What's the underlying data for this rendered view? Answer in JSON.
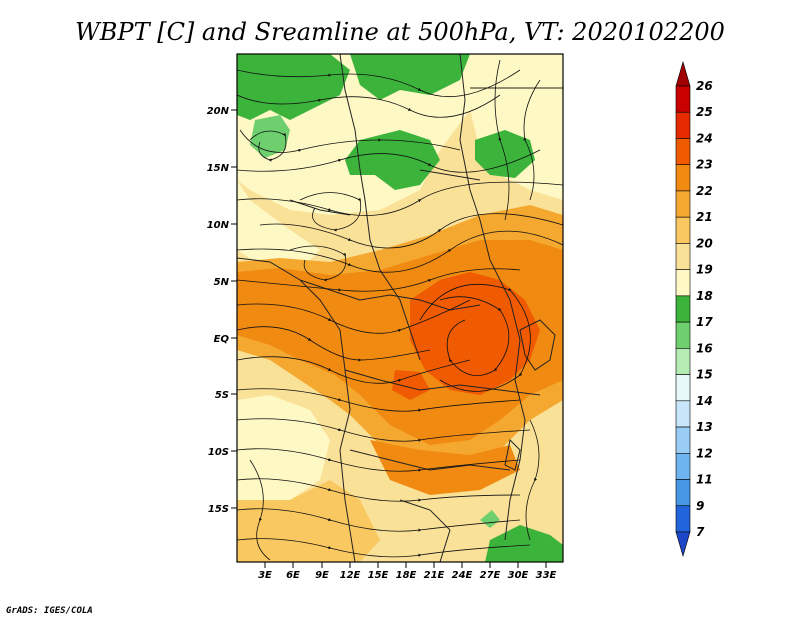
{
  "title": "WBPT [C] and Sreamline at 500hPa, VT: 2020102200",
  "credit": "GrADS: IGES/COLA",
  "lat_ticks": [
    "20N",
    "15N",
    "10N",
    "5N",
    "EQ",
    "5S",
    "10S",
    "15S"
  ],
  "lon_ticks": [
    "3E",
    "6E",
    "9E",
    "12E",
    "15E",
    "18E",
    "21E",
    "24E",
    "27E",
    "30E",
    "33E"
  ],
  "colorbar": {
    "labels": [
      "26",
      "25",
      "24",
      "23",
      "22",
      "21",
      "20",
      "19",
      "18",
      "17",
      "16",
      "15",
      "14",
      "13",
      "12",
      "11",
      "9",
      "7"
    ],
    "colors": [
      "#a00000",
      "#c80000",
      "#e62a00",
      "#f05a00",
      "#f08a10",
      "#f5a830",
      "#fac860",
      "#fae198",
      "#fdf8c4",
      "#3cb43c",
      "#6ecf6e",
      "#b4ecb4",
      "#e6f8f8",
      "#c8e6fa",
      "#9acdf5",
      "#6eb4f0",
      "#4696e6",
      "#2264dc",
      "#1e46c8"
    ]
  }
}
